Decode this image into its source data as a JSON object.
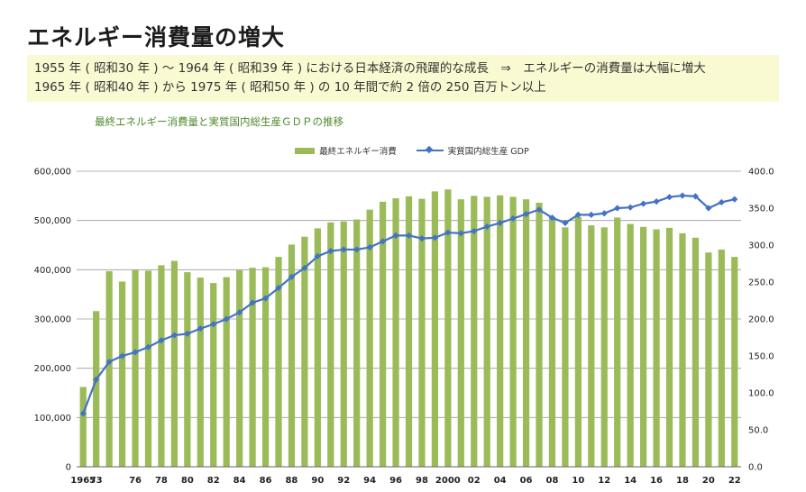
{
  "page": {
    "title": "エネルギー消費量の増大",
    "note_lines": [
      "1955 年 ( 昭和30 年 ) ～ 1964 年 ( 昭和39 年 ) における日本経済の飛躍的な成長　⇒　エネルギーの消費量は大幅に増大",
      "1965 年 ( 昭和40 年 ) から 1975 年 ( 昭和50 年 ) の 10 年間で約 2 倍の 250 百万トン以上"
    ]
  },
  "colors": {
    "bar": "#9bbb59",
    "line": "#4472c4",
    "note_bg": "#fafad2",
    "chart_title": "#4f8a2c"
  },
  "chart_data": {
    "type": "bar",
    "title": "最終エネルギー消費量と実質国内総生産ＧＤＰの推移",
    "legend_position": "top",
    "grid": true,
    "y_left": {
      "min": 0,
      "max": 600000,
      "ticks": [
        "0",
        "100,000",
        "200,000",
        "300,000",
        "400,000",
        "500,000",
        "600,000"
      ]
    },
    "y_right": {
      "min": 0,
      "max": 400,
      "ticks": [
        "0.0",
        "50.0",
        "100.0",
        "150.0",
        "200.0",
        "250.0",
        "300.0",
        "350.0",
        "400.0"
      ]
    },
    "x": [
      1965,
      1973,
      1974,
      1975,
      1976,
      1977,
      1978,
      1979,
      1980,
      1981,
      1982,
      1983,
      1984,
      1985,
      1986,
      1987,
      1988,
      1989,
      1990,
      1991,
      1992,
      1993,
      1994,
      1995,
      1996,
      1997,
      1998,
      1999,
      2000,
      2001,
      2002,
      2003,
      2004,
      2005,
      2006,
      2007,
      2008,
      2009,
      2010,
      2011,
      2012,
      2013,
      2014,
      2015,
      2016,
      2017,
      2018,
      2019,
      2020,
      2021,
      2022
    ],
    "x_tick_labels": [
      "1965",
      "73",
      "76",
      "78",
      "80",
      "82",
      "84",
      "86",
      "88",
      "90",
      "92",
      "94",
      "96",
      "98",
      "2000",
      "02",
      "04",
      "06",
      "08",
      "10",
      "12",
      "14",
      "16",
      "18",
      "20",
      "22"
    ],
    "x_tick_years": [
      1965,
      1973,
      1976,
      1978,
      1980,
      1982,
      1984,
      1986,
      1988,
      1990,
      1992,
      1994,
      1996,
      1998,
      2000,
      2002,
      2004,
      2006,
      2008,
      2010,
      2012,
      2014,
      2016,
      2018,
      2020,
      2022
    ],
    "series": [
      {
        "name": "最終エネルギー消費",
        "type": "bar",
        "axis": "left",
        "values": [
          162000,
          316000,
          397000,
          376000,
          399000,
          398000,
          409000,
          418000,
          395000,
          384000,
          373000,
          385000,
          399000,
          404000,
          405000,
          426000,
          451000,
          467000,
          484000,
          496000,
          498000,
          502000,
          522000,
          538000,
          545000,
          549000,
          544000,
          559000,
          563000,
          543000,
          550000,
          548000,
          551000,
          548000,
          543000,
          536000,
          507000,
          486000,
          507000,
          490000,
          486000,
          506000,
          493000,
          487000,
          482000,
          485000,
          474000,
          465000,
          435000,
          441000,
          426000
        ]
      },
      {
        "name": "実質国内総生産 GDP",
        "type": "line",
        "axis": "right",
        "values": [
          72,
          118,
          142,
          150,
          155,
          162,
          171,
          178,
          180,
          187,
          193,
          200,
          209,
          222,
          228,
          242,
          257,
          269,
          285,
          292,
          294,
          294,
          297,
          305,
          313,
          313,
          309,
          310,
          317,
          316,
          319,
          325,
          330,
          336,
          342,
          348,
          337,
          330,
          341,
          341,
          343,
          350,
          351,
          356,
          359,
          365,
          367,
          366,
          350,
          358,
          362
        ]
      }
    ]
  }
}
